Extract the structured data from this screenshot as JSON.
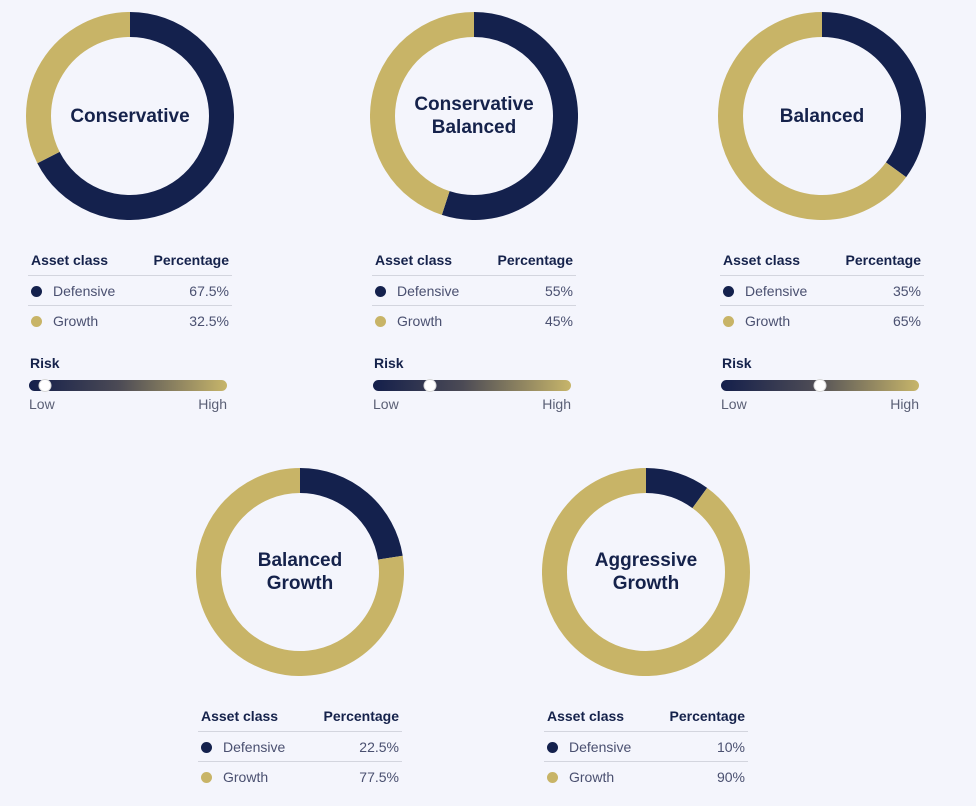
{
  "colors": {
    "defensive": "#14214d",
    "growth": "#c8b467"
  },
  "table_headers": {
    "asset_class": "Asset class",
    "percentage": "Percentage"
  },
  "risk_labels": {
    "title": "Risk",
    "low": "Low",
    "high": "High"
  },
  "chart_data": [
    {
      "type": "pie",
      "title": "Conservative",
      "categories": [
        "Defensive",
        "Growth"
      ],
      "values": [
        67.5,
        32.5
      ],
      "value_labels": [
        "67.5%",
        "32.5%"
      ],
      "risk_level": 0.08
    },
    {
      "type": "pie",
      "title": "Conservative\nBalanced",
      "categories": [
        "Defensive",
        "Growth"
      ],
      "values": [
        55,
        45
      ],
      "value_labels": [
        "55%",
        "45%"
      ],
      "risk_level": 0.29
    },
    {
      "type": "pie",
      "title": "Balanced",
      "categories": [
        "Defensive",
        "Growth"
      ],
      "values": [
        35,
        65
      ],
      "value_labels": [
        "35%",
        "65%"
      ],
      "risk_level": 0.5
    },
    {
      "type": "pie",
      "title": "Balanced\nGrowth",
      "categories": [
        "Defensive",
        "Growth"
      ],
      "values": [
        22.5,
        77.5
      ],
      "value_labels": [
        "22.5%",
        "77.5%"
      ]
    },
    {
      "type": "pie",
      "title": "Aggressive\nGrowth",
      "categories": [
        "Defensive",
        "Growth"
      ],
      "values": [
        10,
        90
      ],
      "value_labels": [
        "10%",
        "90%"
      ]
    }
  ]
}
